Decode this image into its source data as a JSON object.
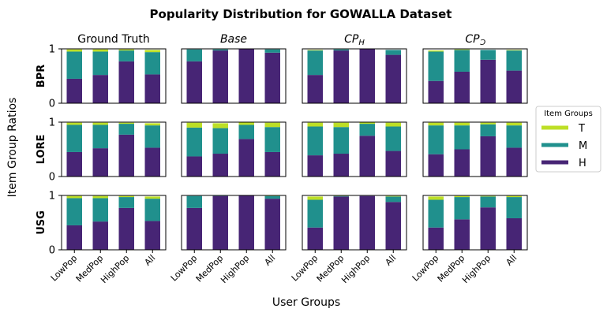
{
  "chart_data": {
    "type": "bar",
    "stacked": true,
    "title": "Popularity Distribution for GOWALLA Dataset",
    "xlabel": "User Groups",
    "ylabel": "Item Group Ratios",
    "ylim": [
      0,
      1
    ],
    "yticks": [
      "0",
      "1"
    ],
    "categories": [
      "LowPop",
      "MedPop",
      "HighPop",
      "All"
    ],
    "columns": [
      "Ground Truth",
      "Base",
      "CP",
      "CP"
    ],
    "column_subscripts": [
      "",
      "",
      "H",
      "Ɔ"
    ],
    "column_italic": [
      false,
      true,
      true,
      true
    ],
    "rows": [
      "BPR",
      "LORE",
      "USG"
    ],
    "legend": {
      "title": "Item Groups",
      "placement": "right",
      "entries": [
        {
          "name": "T",
          "color": "#bddf26"
        },
        {
          "name": "M",
          "color": "#20908d"
        },
        {
          "name": "H",
          "color": "#472575"
        }
      ]
    },
    "panels": [
      {
        "row": "BPR",
        "column": "Ground Truth",
        "H": [
          0.45,
          0.52,
          0.77,
          0.53
        ],
        "M": [
          0.5,
          0.43,
          0.2,
          0.41
        ],
        "T": [
          0.04,
          0.04,
          0.02,
          0.04
        ]
      },
      {
        "row": "BPR",
        "column": "Base",
        "H": [
          0.77,
          0.97,
          1.0,
          0.93
        ],
        "M": [
          0.22,
          0.02,
          0.0,
          0.06
        ],
        "T": [
          0.0,
          0.0,
          0.0,
          0.0
        ]
      },
      {
        "row": "BPR",
        "column": "CP_H",
        "H": [
          0.52,
          0.97,
          1.0,
          0.89
        ],
        "M": [
          0.45,
          0.02,
          0.0,
          0.09
        ],
        "T": [
          0.01,
          0.0,
          0.0,
          0.0
        ]
      },
      {
        "row": "BPR",
        "column": "CP_Ɔ",
        "H": [
          0.41,
          0.58,
          0.8,
          0.6
        ],
        "M": [
          0.54,
          0.4,
          0.18,
          0.37
        ],
        "T": [
          0.02,
          0.01,
          0.0,
          0.01
        ]
      },
      {
        "row": "LORE",
        "column": "Ground Truth",
        "H": [
          0.45,
          0.52,
          0.77,
          0.53
        ],
        "M": [
          0.5,
          0.43,
          0.2,
          0.41
        ],
        "T": [
          0.04,
          0.04,
          0.02,
          0.04
        ]
      },
      {
        "row": "LORE",
        "column": "Base",
        "H": [
          0.37,
          0.42,
          0.69,
          0.45
        ],
        "M": [
          0.53,
          0.47,
          0.26,
          0.46
        ],
        "T": [
          0.09,
          0.09,
          0.05,
          0.08
        ]
      },
      {
        "row": "LORE",
        "column": "CP_H",
        "H": [
          0.39,
          0.42,
          0.75,
          0.47
        ],
        "M": [
          0.53,
          0.49,
          0.22,
          0.45
        ],
        "T": [
          0.07,
          0.08,
          0.03,
          0.07
        ]
      },
      {
        "row": "LORE",
        "column": "CP_Ɔ",
        "H": [
          0.41,
          0.5,
          0.74,
          0.53
        ],
        "M": [
          0.53,
          0.44,
          0.22,
          0.41
        ],
        "T": [
          0.05,
          0.05,
          0.03,
          0.05
        ]
      },
      {
        "row": "USG",
        "column": "Ground Truth",
        "H": [
          0.45,
          0.52,
          0.77,
          0.53
        ],
        "M": [
          0.5,
          0.43,
          0.2,
          0.41
        ],
        "T": [
          0.04,
          0.04,
          0.02,
          0.04
        ]
      },
      {
        "row": "USG",
        "column": "Base",
        "H": [
          0.77,
          0.99,
          1.0,
          0.94
        ],
        "M": [
          0.22,
          0.01,
          0.0,
          0.05
        ],
        "T": [
          0.0,
          0.0,
          0.0,
          0.01
        ]
      },
      {
        "row": "USG",
        "column": "CP_H",
        "H": [
          0.41,
          0.98,
          0.99,
          0.88
        ],
        "M": [
          0.51,
          0.01,
          0.0,
          0.1
        ],
        "T": [
          0.06,
          0.01,
          0.0,
          0.01
        ]
      },
      {
        "row": "USG",
        "column": "CP_Ɔ",
        "H": [
          0.41,
          0.56,
          0.78,
          0.58
        ],
        "M": [
          0.51,
          0.41,
          0.2,
          0.39
        ],
        "T": [
          0.06,
          0.02,
          0.01,
          0.02
        ]
      }
    ]
  }
}
